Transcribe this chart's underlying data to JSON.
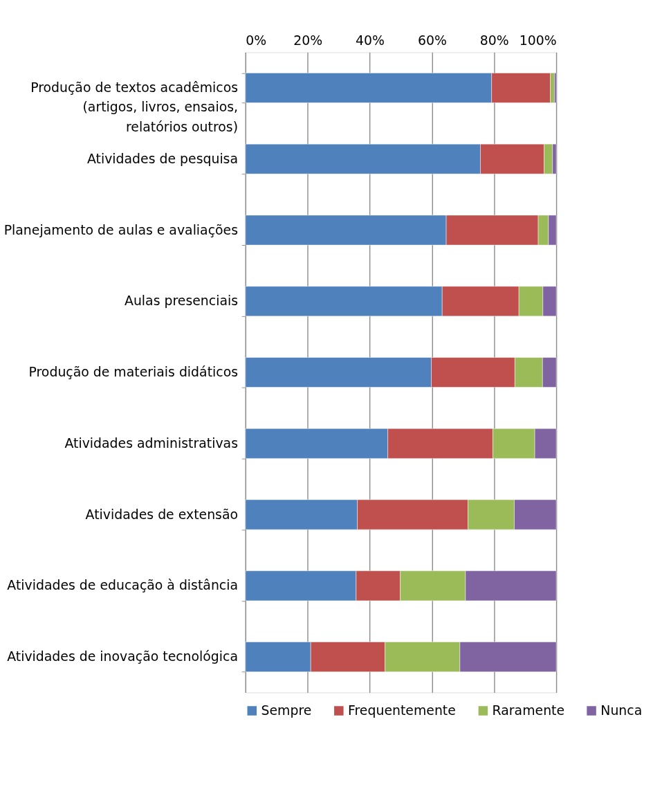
{
  "chart_data": {
    "type": "bar",
    "orientation": "horizontal",
    "stacked": true,
    "categories": [
      "Produção de textos acadêmicos (artigos, livros, ensaios, relatórios outros)",
      "Atividades de pesquisa",
      "Planejamento de aulas e avaliações",
      "Aulas presenciais",
      "Produção de materiais didáticos",
      "Atividades administrativas",
      "Atividades de extensão",
      "Atividades de educação à distância",
      "Atividades de inovação tecnológica"
    ],
    "series": [
      {
        "name": "Sempre",
        "color": "#4f81bd",
        "values": [
          79.2,
          75.6,
          64.6,
          63.3,
          59.8,
          45.8,
          36.0,
          35.6,
          21.0
        ]
      },
      {
        "name": "Frequentemente",
        "color": "#c0504d",
        "values": [
          18.9,
          20.5,
          29.6,
          24.7,
          26.9,
          33.8,
          35.6,
          14.2,
          23.9
        ]
      },
      {
        "name": "Raramente",
        "color": "#9bbb59",
        "values": [
          1.3,
          2.7,
          3.3,
          7.7,
          8.9,
          13.5,
          14.9,
          21.0,
          24.1
        ]
      },
      {
        "name": "Nunca",
        "color": "#8064a2",
        "values": [
          0.6,
          1.2,
          2.5,
          4.3,
          4.4,
          6.9,
          13.5,
          29.2,
          31.0
        ]
      }
    ],
    "xlim": [
      0,
      100
    ],
    "xticks": [
      {
        "value": 0,
        "label": "0%"
      },
      {
        "value": 20,
        "label": "20%"
      },
      {
        "value": 40,
        "label": "40%"
      },
      {
        "value": 60,
        "label": "60%"
      },
      {
        "value": 80,
        "label": "80%"
      },
      {
        "value": 100,
        "label": "100%"
      }
    ],
    "grid": "x",
    "legend": "bottom"
  }
}
